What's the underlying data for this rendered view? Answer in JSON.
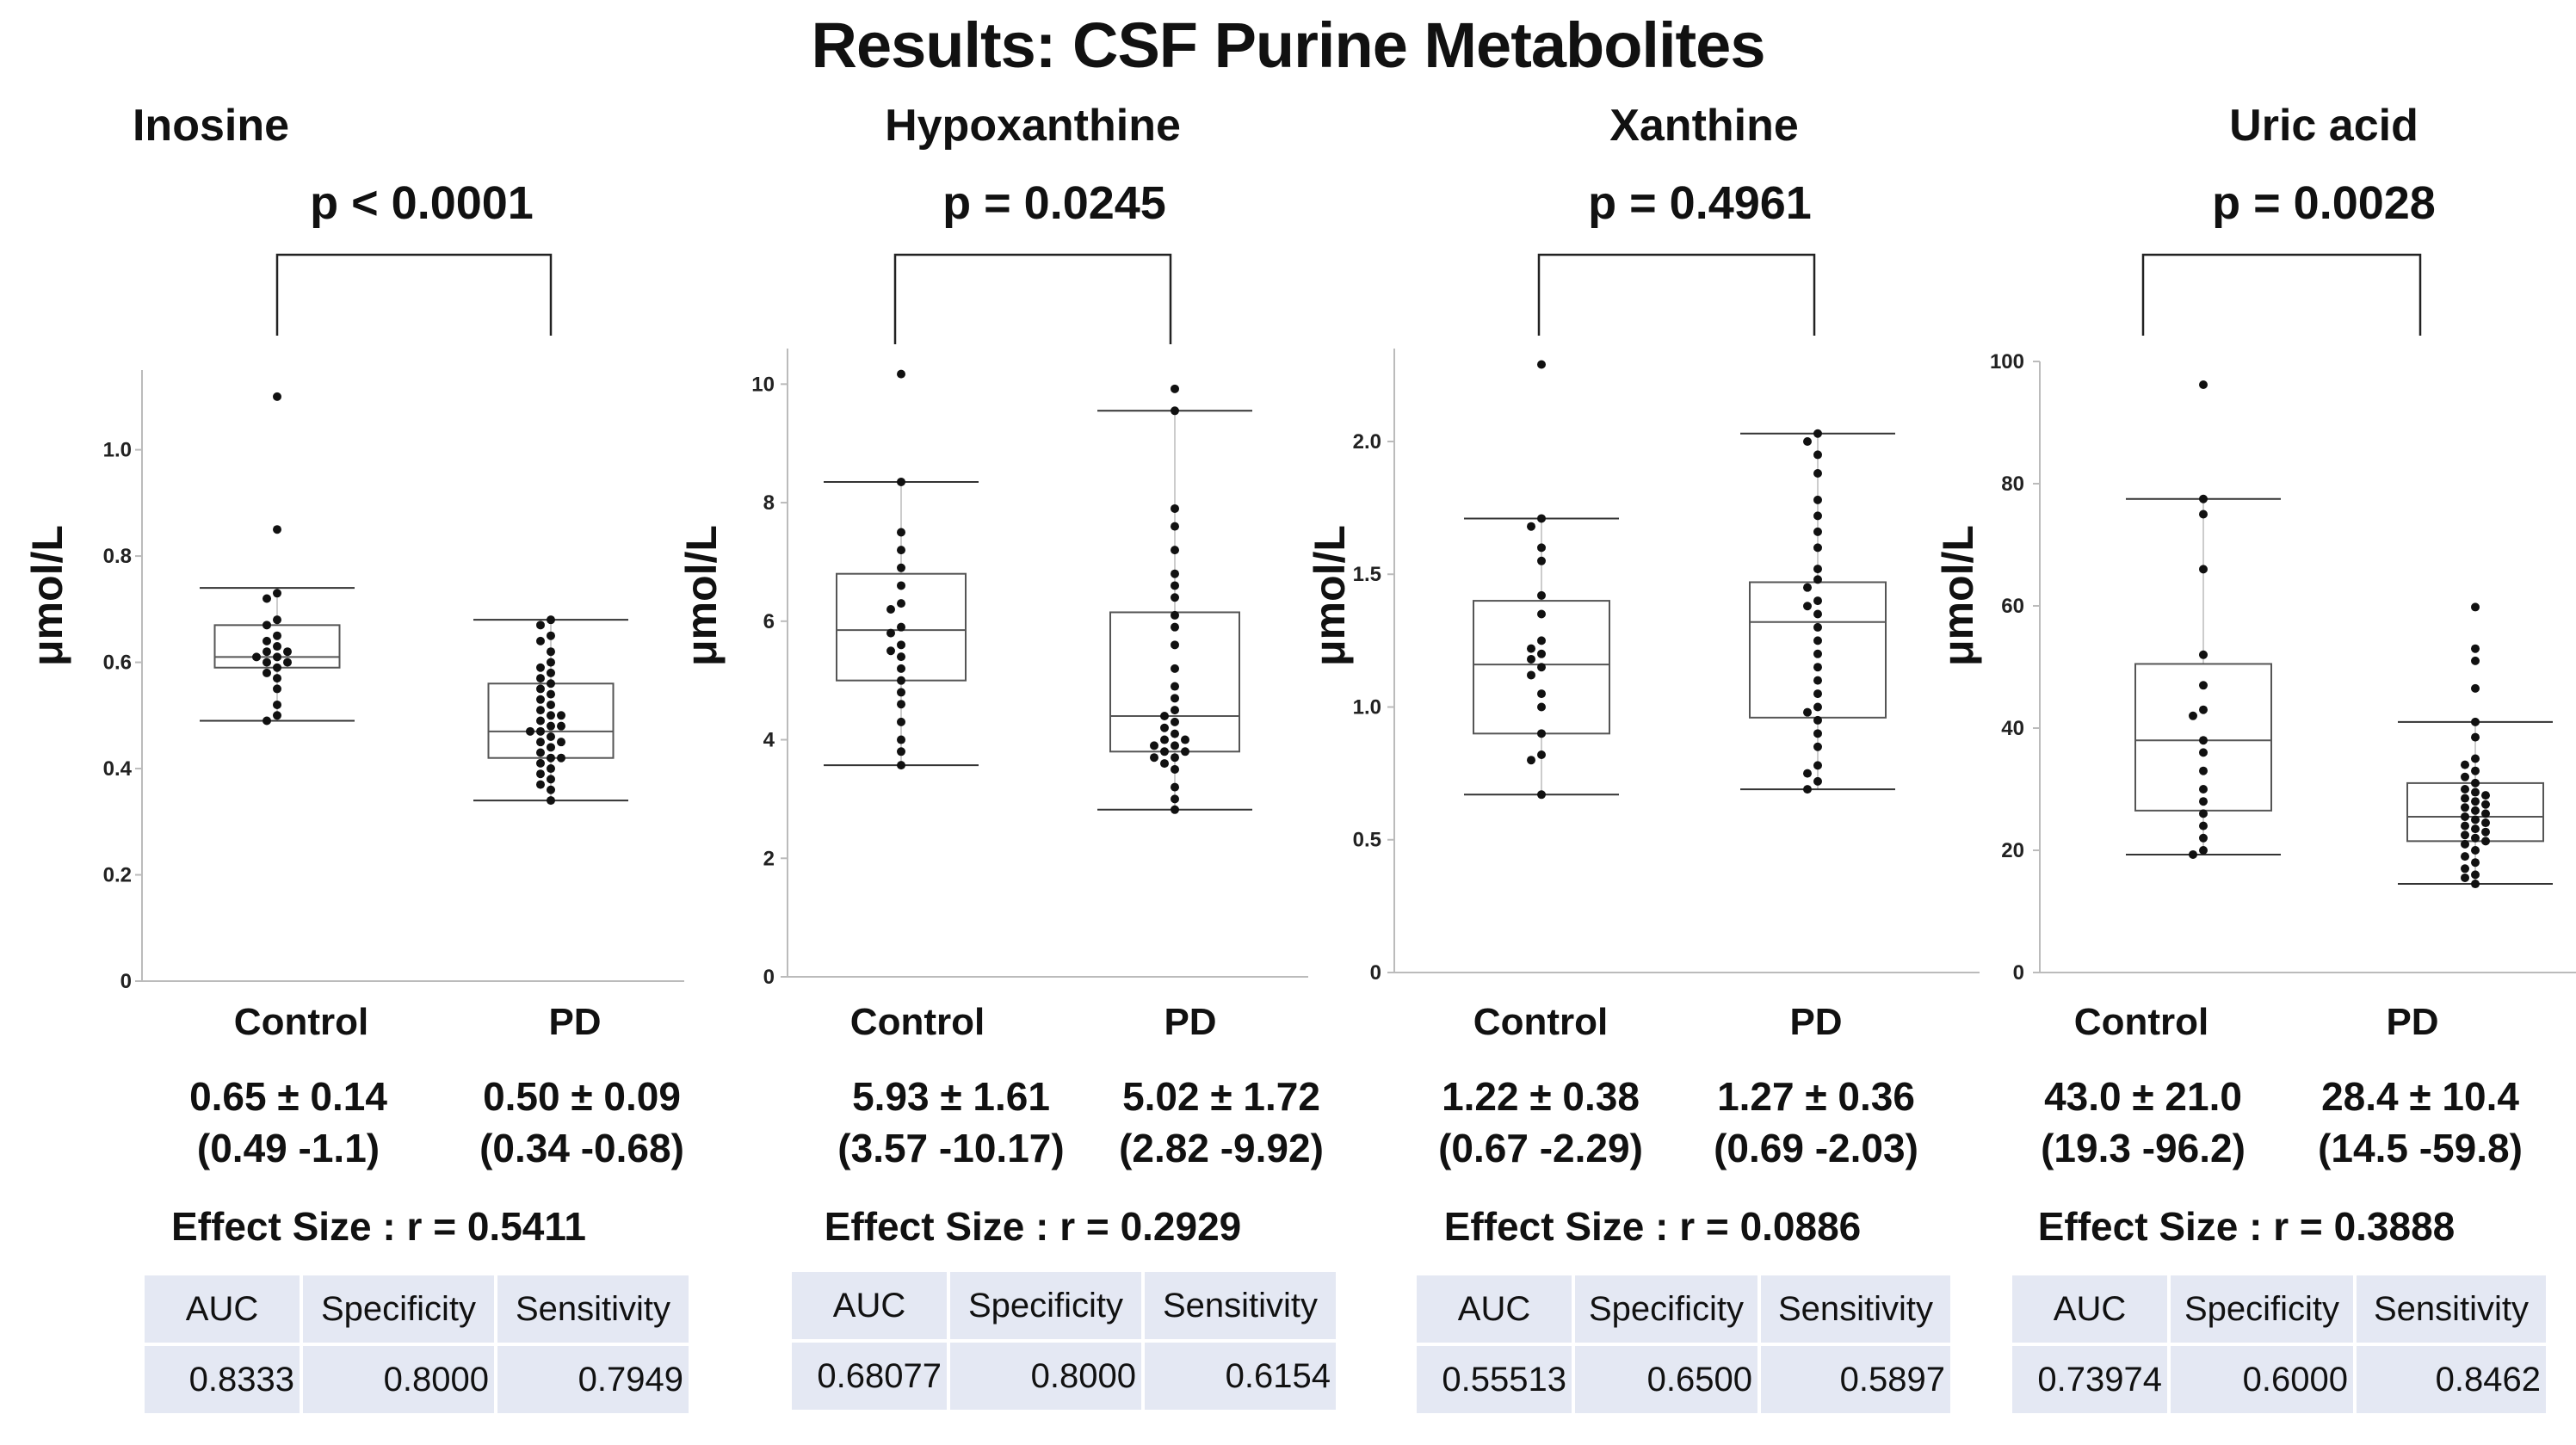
{
  "title": "Results: CSF Purine Metabolites",
  "panels": [
    {
      "name": "Inosine",
      "pvalue": "p < 0.0001",
      "ylabel": "μmol/L",
      "groups": [
        "Control",
        "PD"
      ],
      "stats": [
        "0.65 ± 0.14",
        "0.50 ± 0.09"
      ],
      "ranges": [
        "(0.49 -1.1)",
        "(0.34 -0.68)"
      ],
      "effect": "Effect Size : r = 0.5411",
      "metric_headers": [
        "AUC",
        "Specificity",
        "Sensitivity"
      ],
      "metric_values": [
        "0.8333",
        "0.8000",
        "0.7949"
      ]
    },
    {
      "name": "Hypoxanthine",
      "pvalue": "p = 0.0245",
      "ylabel": "μmol/L",
      "groups": [
        "Control",
        "PD"
      ],
      "stats": [
        "5.93 ± 1.61",
        "5.02 ± 1.72"
      ],
      "ranges": [
        "(3.57 -10.17)",
        "(2.82 -9.92)"
      ],
      "effect": "Effect Size : r = 0.2929",
      "metric_headers": [
        "AUC",
        "Specificity",
        "Sensitivity"
      ],
      "metric_values": [
        "0.68077",
        "0.8000",
        "0.6154"
      ]
    },
    {
      "name": "Xanthine",
      "pvalue": "p = 0.4961",
      "ylabel": "μmol/L",
      "groups": [
        "Control",
        "PD"
      ],
      "stats": [
        "1.22 ± 0.38",
        "1.27 ± 0.36"
      ],
      "ranges": [
        "(0.67 -2.29)",
        "(0.69 -2.03)"
      ],
      "effect": "Effect Size : r = 0.0886",
      "metric_headers": [
        "AUC",
        "Specificity",
        "Sensitivity"
      ],
      "metric_values": [
        "0.55513",
        "0.6500",
        "0.5897"
      ]
    },
    {
      "name": "Uric acid",
      "pvalue": "p = 0.0028",
      "ylabel": "μmol/L",
      "groups": [
        "Control",
        "PD"
      ],
      "stats": [
        "43.0 ± 21.0",
        "28.4 ± 10.4"
      ],
      "ranges": [
        "(19.3 -96.2)",
        "(14.5 -59.8)"
      ],
      "effect": "Effect Size : r = 0.3888",
      "metric_headers": [
        "AUC",
        "Specificity",
        "Sensitivity"
      ],
      "metric_values": [
        "0.73974",
        "0.6000",
        "0.8462"
      ]
    }
  ],
  "chart_data": [
    {
      "type": "box",
      "title": "Inosine",
      "ylabel": "μmol/L",
      "ylim": [
        0,
        1.15
      ],
      "yticks": [
        0,
        0.2,
        0.4,
        0.6,
        0.8,
        1.0
      ],
      "ytick_labels": [
        "0",
        "0.2",
        "0.4",
        "0.6",
        "0.8",
        "1.0"
      ],
      "categories": [
        "Control",
        "PD"
      ],
      "boxes": [
        {
          "whisker_low": 0.49,
          "q1": 0.59,
          "median": 0.61,
          "q3": 0.67,
          "whisker_high": 0.74,
          "points": [
            1.1,
            0.85,
            0.73,
            0.72,
            0.68,
            0.67,
            0.65,
            0.64,
            0.63,
            0.62,
            0.62,
            0.61,
            0.61,
            0.6,
            0.6,
            0.59,
            0.58,
            0.57,
            0.55,
            0.52,
            0.5,
            0.49
          ]
        },
        {
          "whisker_low": 0.34,
          "q1": 0.42,
          "median": 0.47,
          "q3": 0.56,
          "whisker_high": 0.68,
          "points": [
            0.68,
            0.67,
            0.65,
            0.64,
            0.62,
            0.6,
            0.59,
            0.58,
            0.57,
            0.56,
            0.55,
            0.54,
            0.53,
            0.52,
            0.51,
            0.5,
            0.5,
            0.49,
            0.48,
            0.48,
            0.47,
            0.47,
            0.46,
            0.45,
            0.45,
            0.44,
            0.43,
            0.42,
            0.42,
            0.41,
            0.4,
            0.39,
            0.38,
            0.37,
            0.36,
            0.34
          ]
        }
      ]
    },
    {
      "type": "box",
      "title": "Hypoxanthine",
      "ylabel": "μmol/L",
      "ylim": [
        0,
        10.6
      ],
      "yticks": [
        0,
        2,
        4,
        6,
        8,
        10
      ],
      "ytick_labels": [
        "0",
        "2",
        "4",
        "6",
        "8",
        "10"
      ],
      "categories": [
        "Control",
        "PD"
      ],
      "boxes": [
        {
          "whisker_low": 3.57,
          "q1": 5.0,
          "median": 5.85,
          "q3": 6.8,
          "whisker_high": 8.35,
          "points": [
            10.17,
            8.35,
            7.5,
            7.2,
            6.9,
            6.6,
            6.3,
            6.2,
            5.9,
            5.8,
            5.6,
            5.5,
            5.4,
            5.2,
            5.0,
            4.8,
            4.6,
            4.3,
            4.0,
            3.8,
            3.57
          ]
        },
        {
          "whisker_low": 2.82,
          "q1": 3.8,
          "median": 4.4,
          "q3": 6.15,
          "whisker_high": 9.55,
          "points": [
            9.92,
            9.55,
            7.9,
            7.6,
            7.2,
            6.8,
            6.6,
            6.4,
            6.1,
            5.9,
            5.6,
            5.2,
            4.9,
            4.7,
            4.5,
            4.4,
            4.3,
            4.2,
            4.1,
            4.0,
            4.0,
            3.9,
            3.9,
            3.8,
            3.8,
            3.7,
            3.7,
            3.6,
            3.5,
            3.2,
            3.0,
            2.82
          ]
        }
      ]
    },
    {
      "type": "box",
      "title": "Xanthine",
      "ylabel": "μmol/L",
      "ylim": [
        0,
        2.35
      ],
      "yticks": [
        0,
        0.5,
        1.0,
        1.5,
        2.0
      ],
      "ytick_labels": [
        "0",
        "0.5",
        "1.0",
        "1.5",
        "2.0"
      ],
      "categories": [
        "Control",
        "PD"
      ],
      "boxes": [
        {
          "whisker_low": 0.67,
          "q1": 0.9,
          "median": 1.16,
          "q3": 1.4,
          "whisker_high": 1.71,
          "points": [
            2.29,
            1.71,
            1.68,
            1.6,
            1.55,
            1.42,
            1.35,
            1.25,
            1.22,
            1.2,
            1.18,
            1.15,
            1.12,
            1.05,
            1.0,
            0.9,
            0.82,
            0.8,
            0.67
          ]
        },
        {
          "whisker_low": 0.69,
          "q1": 0.96,
          "median": 1.32,
          "q3": 1.47,
          "whisker_high": 2.03,
          "points": [
            2.03,
            2.0,
            1.95,
            1.88,
            1.78,
            1.72,
            1.66,
            1.6,
            1.52,
            1.48,
            1.45,
            1.4,
            1.38,
            1.35,
            1.3,
            1.25,
            1.2,
            1.15,
            1.1,
            1.05,
            1.0,
            0.98,
            0.95,
            0.9,
            0.85,
            0.78,
            0.75,
            0.72,
            0.69
          ]
        }
      ]
    },
    {
      "type": "box",
      "title": "Uric acid",
      "ylabel": "μmol/L",
      "ylim": [
        0,
        100
      ],
      "yticks": [
        0,
        20,
        40,
        60,
        80,
        100
      ],
      "ytick_labels": [
        "0",
        "20",
        "40",
        "60",
        "80",
        "100"
      ],
      "categories": [
        "Control",
        "PD"
      ],
      "boxes": [
        {
          "whisker_low": 19.3,
          "q1": 26.5,
          "median": 38.0,
          "q3": 50.5,
          "whisker_high": 77.5,
          "points": [
            96.2,
            77.5,
            75,
            66,
            52,
            47,
            43,
            42,
            38,
            36,
            33,
            30,
            28,
            26,
            24,
            22,
            20,
            19.3
          ]
        },
        {
          "whisker_low": 14.5,
          "q1": 21.5,
          "median": 25.5,
          "q3": 31.0,
          "whisker_high": 41.0,
          "points": [
            59.8,
            53,
            51,
            46.5,
            41,
            38.5,
            35,
            34,
            33,
            32,
            31,
            30,
            29.5,
            29,
            28.5,
            28,
            27.5,
            27,
            26.5,
            26,
            25.5,
            25,
            24.5,
            24,
            23.5,
            23,
            22.5,
            22,
            21.5,
            21,
            20,
            19,
            18,
            17,
            16,
            15.5,
            14.5
          ]
        }
      ]
    }
  ]
}
